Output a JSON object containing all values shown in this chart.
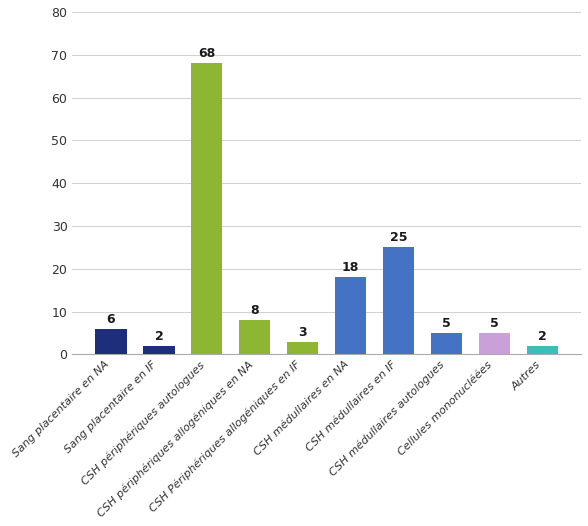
{
  "categories": [
    "Sang placentaire en NA",
    "Sang placentaire en IF",
    "CSH périphériques autologues",
    "CSH périphériques allогéniques en NA",
    "CSH Périphériques allогéniques en IF",
    "CSH médullaires en NA",
    "CSH médullaires en IF",
    "CSH médullaires autologues",
    "Cellules mononucléées",
    "Autres"
  ],
  "values": [
    6,
    2,
    68,
    8,
    3,
    18,
    25,
    5,
    5,
    2
  ],
  "colors": [
    "#1f2e7a",
    "#1f2e7a",
    "#8db632",
    "#8db632",
    "#8db632",
    "#4472c4",
    "#4472c4",
    "#4472c4",
    "#c9a0d8",
    "#3cbfb8"
  ],
  "ylim": [
    0,
    80
  ],
  "yticks": [
    0,
    10,
    20,
    30,
    40,
    50,
    60,
    70,
    80
  ],
  "value_fontsize": 9,
  "tick_fontsize": 9,
  "background_color": "#ffffff"
}
